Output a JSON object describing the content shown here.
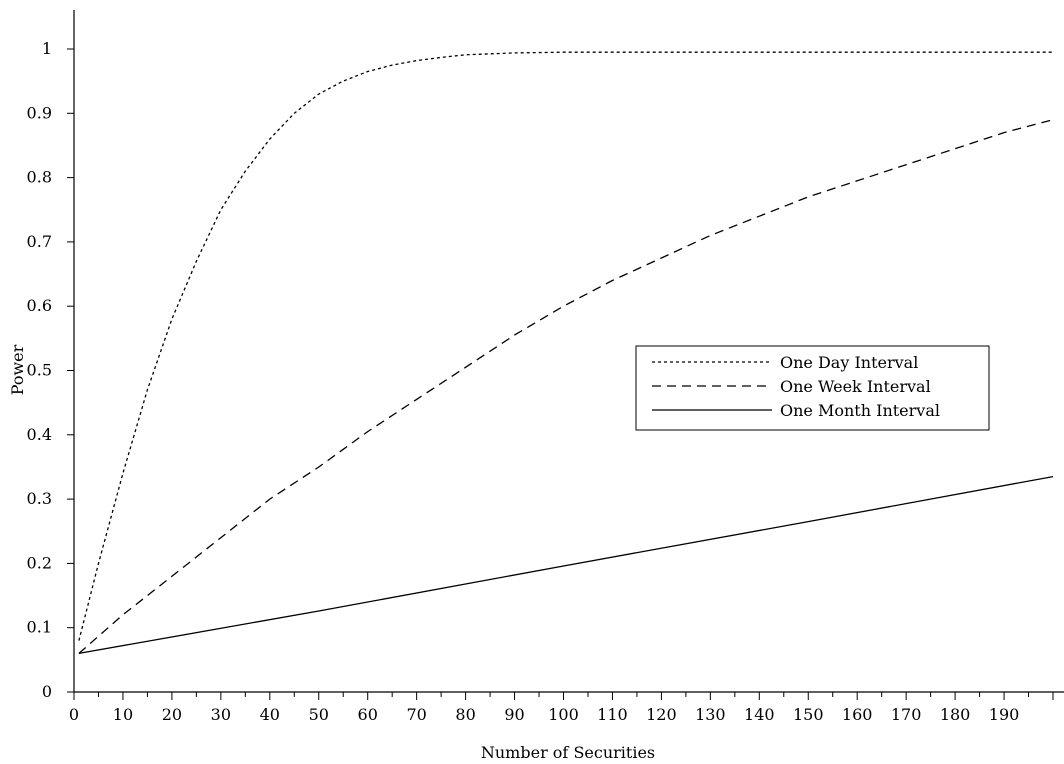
{
  "chart_data": {
    "type": "line",
    "title": "",
    "xlabel": "Number of Securities",
    "ylabel": "Power",
    "xlim": [
      0,
      200
    ],
    "ylim": [
      0,
      1.0
    ],
    "x_ticks": [
      0,
      10,
      20,
      30,
      40,
      50,
      60,
      70,
      80,
      90,
      100,
      110,
      120,
      130,
      140,
      150,
      160,
      170,
      180,
      190
    ],
    "x_tick_labels": [
      "0",
      "10",
      "20",
      "30",
      "40",
      "50",
      "60",
      "70",
      "80",
      "90",
      "100",
      "110",
      "120",
      "130",
      "140",
      "150",
      "160",
      "170",
      "180",
      "190"
    ],
    "x_minor_step": 5,
    "y_ticks": [
      0,
      0.1,
      0.2,
      0.3,
      0.4,
      0.5,
      0.6,
      0.7,
      0.8,
      0.9,
      1.0
    ],
    "y_tick_labels": [
      "0",
      "0.1",
      "0.2",
      "0.3",
      "0.4",
      "0.5",
      "0.6",
      "0.7",
      "0.8",
      "0.9",
      "1"
    ],
    "grid": false,
    "legend_position": "right-center",
    "series": [
      {
        "name": "One Day Interval",
        "dash": "dotted",
        "color": "#000000",
        "points": [
          [
            1,
            0.08
          ],
          [
            5,
            0.2
          ],
          [
            10,
            0.34
          ],
          [
            15,
            0.47
          ],
          [
            20,
            0.58
          ],
          [
            25,
            0.67
          ],
          [
            30,
            0.75
          ],
          [
            35,
            0.81
          ],
          [
            40,
            0.86
          ],
          [
            45,
            0.9
          ],
          [
            50,
            0.93
          ],
          [
            55,
            0.95
          ],
          [
            60,
            0.965
          ],
          [
            65,
            0.975
          ],
          [
            70,
            0.982
          ],
          [
            75,
            0.987
          ],
          [
            80,
            0.991
          ],
          [
            90,
            0.994
          ],
          [
            100,
            0.995
          ],
          [
            120,
            0.995
          ],
          [
            150,
            0.995
          ],
          [
            200,
            0.995
          ]
        ]
      },
      {
        "name": "One Week Interval",
        "dash": "dashed",
        "color": "#000000",
        "points": [
          [
            1,
            0.06
          ],
          [
            10,
            0.12
          ],
          [
            20,
            0.18
          ],
          [
            30,
            0.24
          ],
          [
            40,
            0.3
          ],
          [
            50,
            0.35
          ],
          [
            60,
            0.405
          ],
          [
            70,
            0.455
          ],
          [
            80,
            0.505
          ],
          [
            90,
            0.555
          ],
          [
            100,
            0.6
          ],
          [
            110,
            0.64
          ],
          [
            120,
            0.675
          ],
          [
            130,
            0.71
          ],
          [
            140,
            0.74
          ],
          [
            150,
            0.77
          ],
          [
            160,
            0.795
          ],
          [
            170,
            0.82
          ],
          [
            180,
            0.845
          ],
          [
            190,
            0.87
          ],
          [
            200,
            0.89
          ]
        ]
      },
      {
        "name": "One Month Interval",
        "dash": "solid",
        "color": "#000000",
        "points": [
          [
            1,
            0.06
          ],
          [
            50,
            0.126
          ],
          [
            100,
            0.196
          ],
          [
            150,
            0.265
          ],
          [
            200,
            0.335
          ]
        ]
      }
    ]
  }
}
